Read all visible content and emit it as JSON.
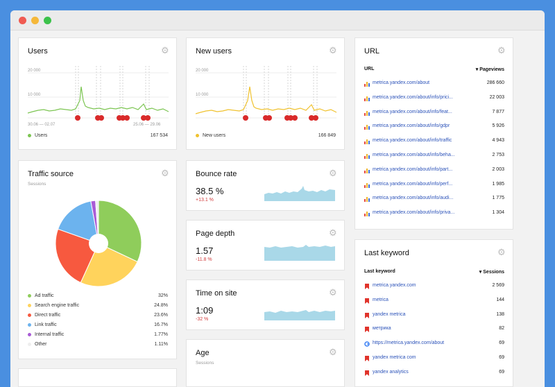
{
  "colors": {
    "users": "#7cc552",
    "new_users": "#f0c22f",
    "spark": "#a9d8e8",
    "link": "#2b52b9",
    "delta": "#d23c3c"
  },
  "users": {
    "title": "Users",
    "y_ticks": [
      "20 000",
      "10 000"
    ],
    "x_ticks": [
      "30.06 — 02.07",
      "25.06 — 29.06"
    ],
    "legend_label": "Users",
    "legend_value": "167 534"
  },
  "new_users": {
    "title": "New users",
    "y_ticks": [
      "20 000",
      "10 000"
    ],
    "legend_label": "New users",
    "legend_value": "166 849"
  },
  "traffic": {
    "title": "Traffic source",
    "subtitle": "Sessions",
    "items": [
      {
        "label": "Ad traffic",
        "value": "32%",
        "color": "#8fcd5b"
      },
      {
        "label": "Search engine traffic",
        "value": "24.8%",
        "color": "#ffd35c"
      },
      {
        "label": "Direct traffic",
        "value": "23.6%",
        "color": "#f7593f"
      },
      {
        "label": "Link traffic",
        "value": "16.7%",
        "color": "#6cb3ee"
      },
      {
        "label": "Internal traffic",
        "value": "1.77%",
        "color": "#a95bd6"
      },
      {
        "label": "Other",
        "value": "1.11%",
        "color": "#eeeeee"
      }
    ]
  },
  "bounce": {
    "title": "Bounce rate",
    "value": "38.5 %",
    "delta": "+13.1 %"
  },
  "depth": {
    "title": "Page depth",
    "value": "1.57",
    "delta": "-11.8 %"
  },
  "time": {
    "title": "Time on site",
    "value": "1:09",
    "delta": "-32 %"
  },
  "age": {
    "title": "Age",
    "subtitle": "Sessions"
  },
  "url": {
    "title": "URL",
    "col_left": "URL",
    "col_right": "▾ Pageviews",
    "rows": [
      {
        "url": "metrica.yandex.com/about",
        "value": "286 660"
      },
      {
        "url": "metrica.yandex.com/about/info/prici...",
        "value": "22 003"
      },
      {
        "url": "metrica.yandex.com/about/info/feat...",
        "value": "7 877"
      },
      {
        "url": "metrica.yandex.com/about/info/gdpr",
        "value": "5 926"
      },
      {
        "url": "metrica.yandex.com/about/info/traffic",
        "value": "4 943"
      },
      {
        "url": "metrica.yandex.com/about/info/beha...",
        "value": "2 753"
      },
      {
        "url": "metrica.yandex.com/about/info/part...",
        "value": "2 003"
      },
      {
        "url": "metrica.yandex.com/about/info/perf...",
        "value": "1 985"
      },
      {
        "url": "metrica.yandex.com/about/info/audi...",
        "value": "1 775"
      },
      {
        "url": "metrica.yandex.com/about/info/priva...",
        "value": "1 304"
      }
    ]
  },
  "keyword": {
    "title": "Last keyword",
    "col_left": "Last keyword",
    "col_right": "▾ Sessions",
    "rows": [
      {
        "text": "metrica.yandex.com",
        "value": "2 569",
        "icon": "yandex"
      },
      {
        "text": "metrica",
        "value": "144",
        "icon": "yandex"
      },
      {
        "text": "yandex metrica",
        "value": "138",
        "icon": "yandex"
      },
      {
        "text": "метрика",
        "value": "82",
        "icon": "yandex"
      },
      {
        "text": "https://metrica.yandex.com/about",
        "value": "69",
        "icon": "google"
      },
      {
        "text": "yandex metrica com",
        "value": "69",
        "icon": "yandex"
      },
      {
        "text": "yandex analytics",
        "value": "69",
        "icon": "yandex"
      }
    ]
  }
}
